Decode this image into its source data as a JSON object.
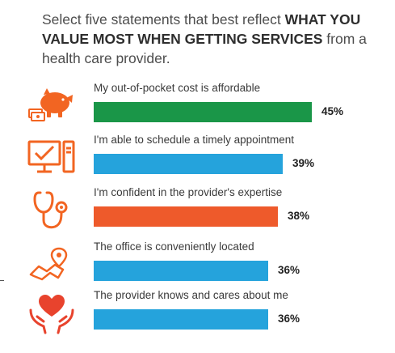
{
  "title": {
    "pre": "Select five statements that best reflect ",
    "bold": "WHAT YOU VALUE MOST WHEN GETTING SERVICES",
    "post": " from a health care provider."
  },
  "chart_data": {
    "type": "bar",
    "orientation": "horizontal",
    "categories": [
      "My out-of-pocket cost is affordable",
      "I'm able to schedule a timely appointment",
      "I'm confident in the provider's expertise",
      "The office is conveniently located",
      "The provider knows and cares about me"
    ],
    "values": [
      45,
      39,
      38,
      36,
      36
    ],
    "value_labels": [
      "45%",
      "39%",
      "38%",
      "36%",
      "36%"
    ],
    "colors": [
      "#1a9648",
      "#25a3dc",
      "#ee5a2b",
      "#25a3dc",
      "#25a3dc"
    ],
    "icons": [
      "piggy-bank-icon",
      "computer-icon",
      "stethoscope-icon",
      "map-pin-icon",
      "heart-hands-icon"
    ]
  }
}
